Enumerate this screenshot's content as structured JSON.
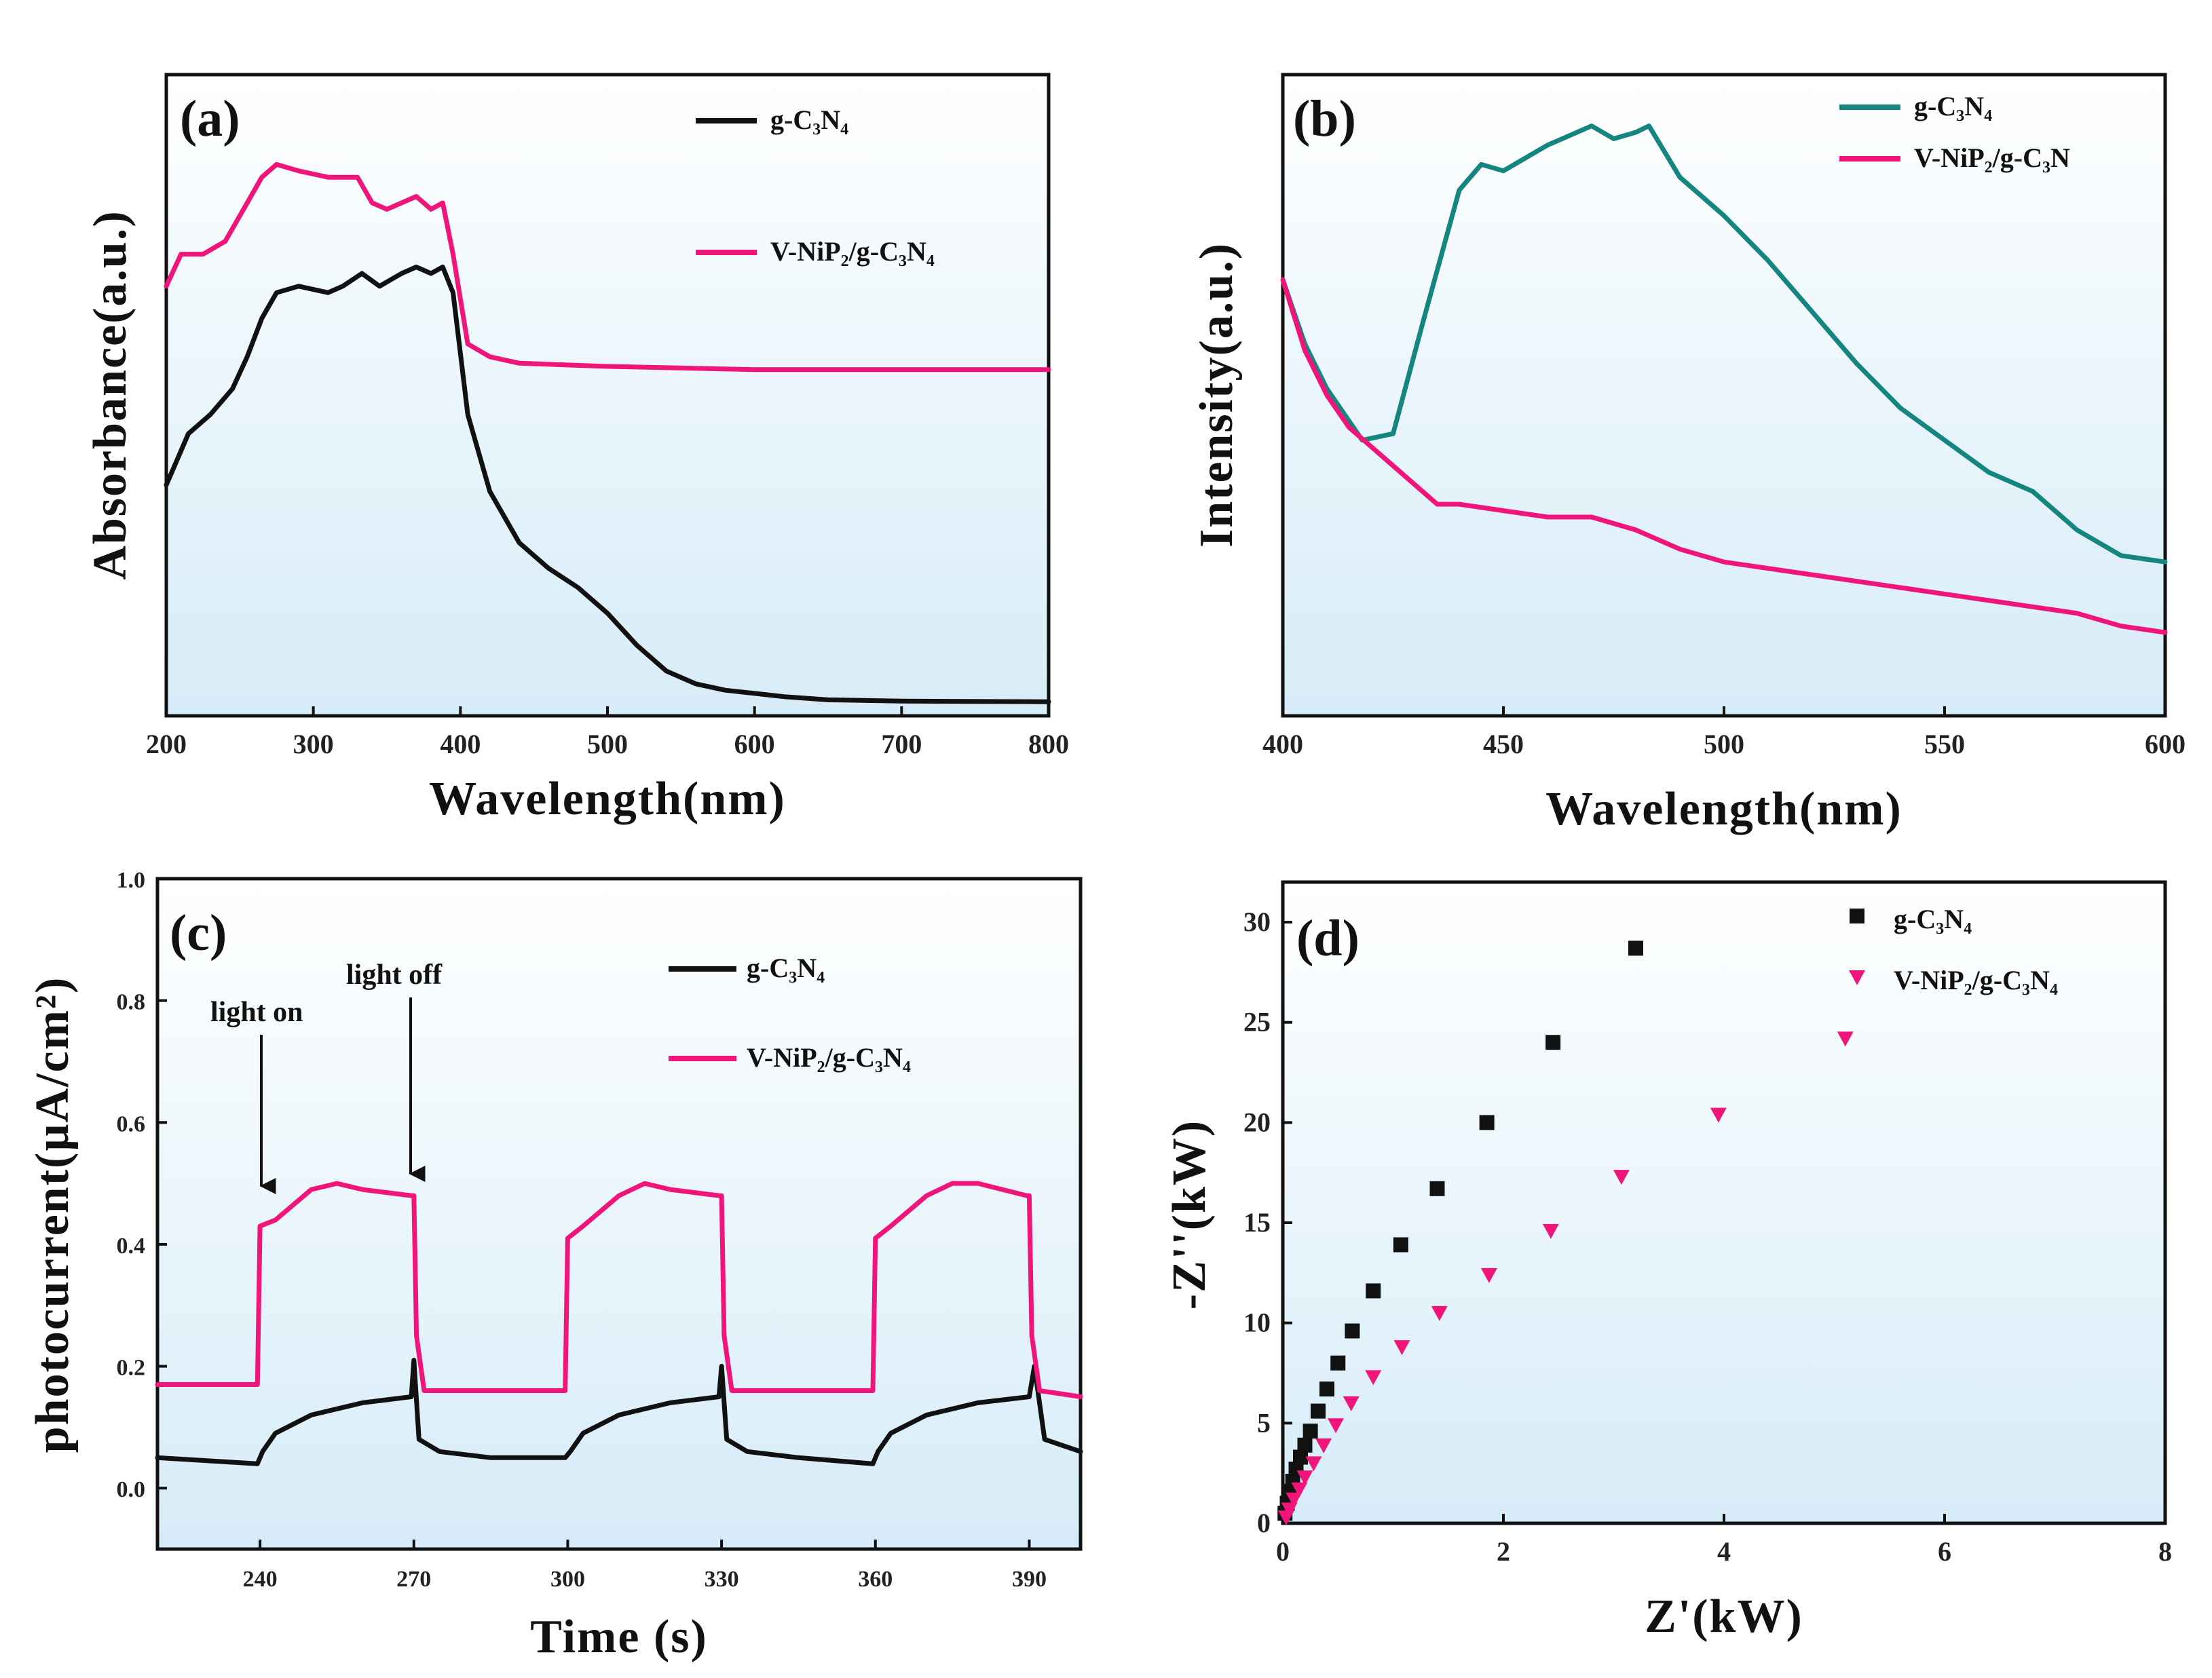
{
  "colors": {
    "black": "#111111",
    "pink": "#f0157a",
    "teal": "#15867f",
    "bg_top": "#ffffff",
    "bg_bottom": "#d6ecf8"
  },
  "chart_data": [
    {
      "panel": "(a)",
      "type": "line",
      "xlabel": "Wavelength(nm)",
      "ylabel": "Absorbance(a.u.)",
      "xlim": [
        200,
        800
      ],
      "ylim": [
        0,
        1
      ],
      "xticks": [
        "200",
        "300",
        "400",
        "500",
        "600",
        "700",
        "800"
      ],
      "yticks_shown": false,
      "legend": [
        "g-C₃N₄",
        "V-NiP₂/g-C₃N₄"
      ],
      "series": [
        {
          "name": "g-C₃N₄",
          "color": "#111111",
          "x": [
            200,
            215,
            230,
            245,
            255,
            265,
            275,
            290,
            310,
            320,
            333,
            345,
            360,
            370,
            380,
            388,
            395,
            405,
            420,
            440,
            460,
            480,
            500,
            520,
            540,
            560,
            580,
            600,
            620,
            650,
            700,
            800
          ],
          "y": [
            0.36,
            0.44,
            0.47,
            0.51,
            0.56,
            0.62,
            0.66,
            0.67,
            0.66,
            0.67,
            0.69,
            0.67,
            0.69,
            0.7,
            0.69,
            0.7,
            0.66,
            0.47,
            0.35,
            0.27,
            0.23,
            0.2,
            0.16,
            0.11,
            0.07,
            0.05,
            0.04,
            0.035,
            0.03,
            0.025,
            0.023,
            0.022
          ]
        },
        {
          "name": "V-NiP₂/g-C₃N₄",
          "color": "#f0157a",
          "x": [
            200,
            210,
            225,
            240,
            255,
            265,
            275,
            290,
            310,
            330,
            340,
            350,
            360,
            370,
            380,
            388,
            395,
            405,
            420,
            440,
            500,
            600,
            700,
            800
          ],
          "y": [
            0.67,
            0.72,
            0.72,
            0.74,
            0.8,
            0.84,
            0.86,
            0.85,
            0.84,
            0.84,
            0.8,
            0.79,
            0.8,
            0.81,
            0.79,
            0.8,
            0.72,
            0.58,
            0.56,
            0.55,
            0.545,
            0.54,
            0.54,
            0.54
          ]
        }
      ]
    },
    {
      "panel": "(b)",
      "type": "line",
      "xlabel": "Wavelength(nm)",
      "ylabel": "Intensity(a.u.)",
      "xlim": [
        400,
        600
      ],
      "ylim": [
        0,
        1
      ],
      "xticks": [
        "400",
        "450",
        "500",
        "550",
        "600"
      ],
      "yticks_shown": false,
      "legend": [
        "g-C₃N₄",
        "V-NiP₂/g-C₃N"
      ],
      "series": [
        {
          "name": "g-C₃N₄",
          "color": "#15867f",
          "x": [
            400,
            405,
            410,
            418,
            425,
            432,
            440,
            445,
            450,
            460,
            470,
            475,
            480,
            483,
            490,
            500,
            510,
            520,
            530,
            540,
            550,
            560,
            570,
            580,
            590,
            600
          ],
          "y": [
            0.68,
            0.58,
            0.51,
            0.43,
            0.44,
            0.62,
            0.82,
            0.86,
            0.85,
            0.89,
            0.92,
            0.9,
            0.91,
            0.92,
            0.84,
            0.78,
            0.71,
            0.63,
            0.55,
            0.48,
            0.43,
            0.38,
            0.35,
            0.29,
            0.25,
            0.24
          ]
        },
        {
          "name": "V-NiP₂/g-C₃N",
          "color": "#f0157a",
          "x": [
            400,
            405,
            410,
            415,
            420,
            430,
            435,
            440,
            450,
            460,
            470,
            480,
            490,
            500,
            520,
            540,
            560,
            580,
            590,
            600
          ],
          "y": [
            0.68,
            0.57,
            0.5,
            0.45,
            0.42,
            0.36,
            0.33,
            0.33,
            0.32,
            0.31,
            0.31,
            0.29,
            0.26,
            0.24,
            0.22,
            0.2,
            0.18,
            0.16,
            0.14,
            0.13
          ]
        }
      ]
    },
    {
      "panel": "(c)",
      "type": "line",
      "xlabel": "Time (s)",
      "ylabel": "photocurrent(µA/cm²)",
      "xlim": [
        220,
        400
      ],
      "ylim": [
        -0.1,
        1.0
      ],
      "xticks": [
        "240",
        "270",
        "300",
        "330",
        "360",
        "390"
      ],
      "yticks": [
        "0.0",
        "0.2",
        "0.4",
        "0.6",
        "0.8",
        "1.0"
      ],
      "legend": [
        "g-C₃N₄",
        "V-NiP₂/g-C₃N₄"
      ],
      "annotations": [
        {
          "text": "light on",
          "x": 240,
          "y": 0.44
        },
        {
          "text": "light off",
          "x": 270,
          "y": 0.44
        }
      ],
      "series": [
        {
          "name": "g-C₃N₄",
          "color": "#111111",
          "x": [
            220,
            239.5,
            240.5,
            243,
            250,
            260,
            269.5,
            270,
            271,
            275,
            285,
            299.5,
            300.5,
            303,
            310,
            320,
            329.5,
            330,
            331,
            335,
            345,
            359.5,
            360.5,
            363,
            370,
            380,
            390,
            391,
            393,
            400
          ],
          "y": [
            0.05,
            0.04,
            0.06,
            0.09,
            0.12,
            0.14,
            0.15,
            0.21,
            0.08,
            0.06,
            0.05,
            0.05,
            0.06,
            0.09,
            0.12,
            0.14,
            0.15,
            0.2,
            0.08,
            0.06,
            0.05,
            0.04,
            0.06,
            0.09,
            0.12,
            0.14,
            0.15,
            0.2,
            0.08,
            0.06
          ]
        },
        {
          "name": "V-NiP₂/g-C₃N₄",
          "color": "#f0157a",
          "x": [
            220,
            239.5,
            240,
            243,
            250,
            255,
            260,
            269.5,
            270,
            270.5,
            272,
            299.5,
            300,
            303,
            310,
            315,
            320,
            329.5,
            330,
            330.5,
            332,
            359.5,
            360,
            363,
            370,
            375,
            380,
            389.5,
            390,
            390.5,
            392,
            400
          ],
          "y": [
            0.17,
            0.17,
            0.43,
            0.44,
            0.49,
            0.5,
            0.49,
            0.48,
            0.48,
            0.25,
            0.16,
            0.16,
            0.41,
            0.43,
            0.48,
            0.5,
            0.49,
            0.48,
            0.48,
            0.25,
            0.16,
            0.16,
            0.41,
            0.43,
            0.48,
            0.5,
            0.5,
            0.48,
            0.48,
            0.25,
            0.16,
            0.15
          ]
        }
      ]
    },
    {
      "panel": "(d)",
      "type": "scatter",
      "xlabel": "Z'(kW)",
      "ylabel": "-Z''(kW)",
      "xlim": [
        0,
        8
      ],
      "ylim": [
        0,
        32
      ],
      "xticks": [
        "0",
        "2",
        "4",
        "6",
        "8"
      ],
      "yticks": [
        "0",
        "5",
        "10",
        "15",
        "20",
        "25",
        "30"
      ],
      "legend": [
        "g-C₃N₄",
        "V-NiP₂/g-C₃N₄"
      ],
      "series": [
        {
          "name": "g-C₃N₄",
          "color": "#111111",
          "marker": "square",
          "x": [
            0.02,
            0.04,
            0.06,
            0.09,
            0.12,
            0.16,
            0.2,
            0.25,
            0.32,
            0.4,
            0.5,
            0.63,
            0.82,
            1.07,
            1.4,
            1.85,
            2.45,
            3.2
          ],
          "y": [
            0.5,
            1.0,
            1.6,
            2.1,
            2.7,
            3.3,
            3.9,
            4.6,
            5.6,
            6.7,
            8.0,
            9.6,
            11.6,
            13.9,
            16.7,
            20.0,
            24.0,
            28.7
          ]
        },
        {
          "name": "V-NiP₂/g-C₃N₄",
          "color": "#f0157a",
          "marker": "triangle-down",
          "x": [
            0.03,
            0.06,
            0.1,
            0.15,
            0.2,
            0.28,
            0.37,
            0.48,
            0.62,
            0.82,
            1.08,
            1.42,
            1.87,
            2.43,
            3.07,
            3.95,
            5.1
          ],
          "y": [
            0.3,
            0.7,
            1.2,
            1.7,
            2.3,
            3.0,
            3.9,
            4.9,
            6.0,
            7.3,
            8.8,
            10.5,
            12.4,
            14.6,
            17.3,
            20.4,
            24.2
          ]
        }
      ]
    }
  ]
}
